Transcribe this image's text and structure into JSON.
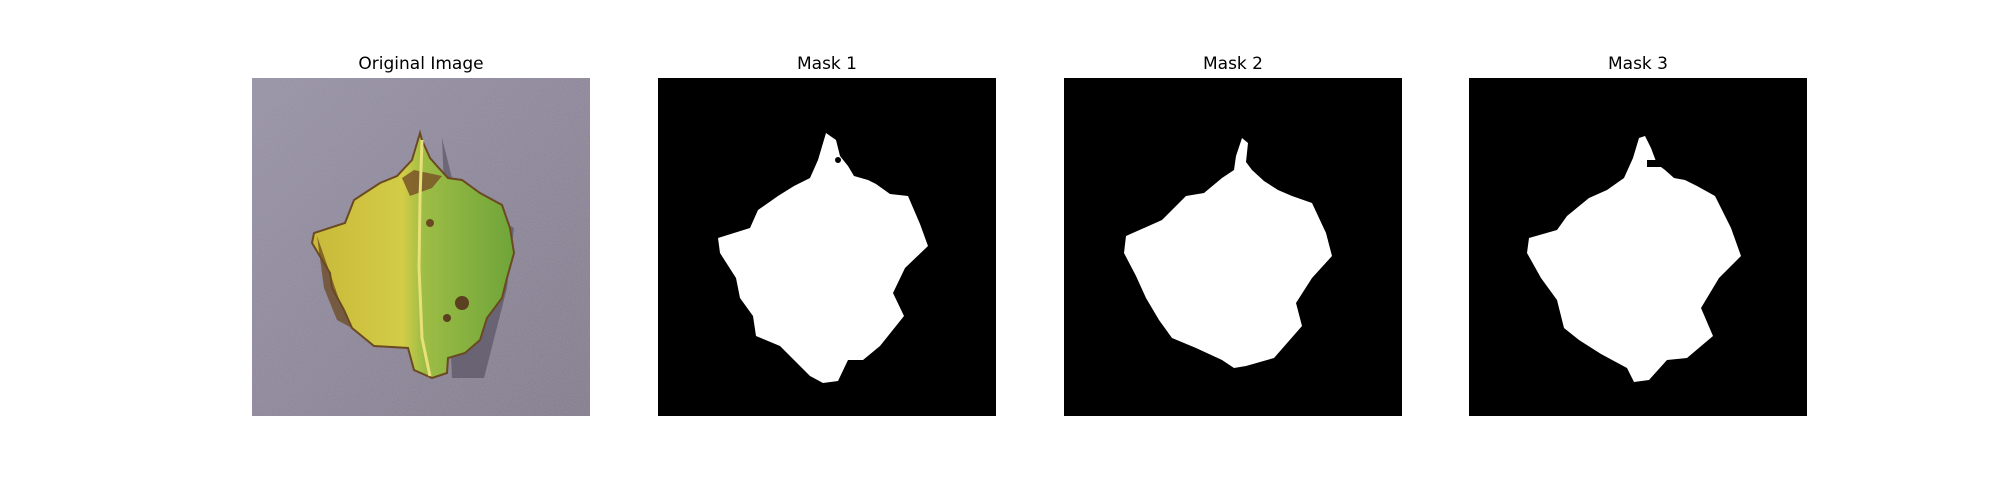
{
  "panels": [
    {
      "title": "Original Image",
      "kind": "photo"
    },
    {
      "title": "Mask 1",
      "kind": "mask"
    },
    {
      "title": "Mask 2",
      "kind": "mask"
    },
    {
      "title": "Mask 3",
      "kind": "mask"
    }
  ],
  "colors": {
    "background_surface": "#8a8296",
    "leaf_yellow": "#cbc43a",
    "leaf_green": "#7fae3e",
    "leaf_brown": "#6b4a22",
    "mask_foreground": "#ffffff",
    "mask_background": "#000000"
  }
}
